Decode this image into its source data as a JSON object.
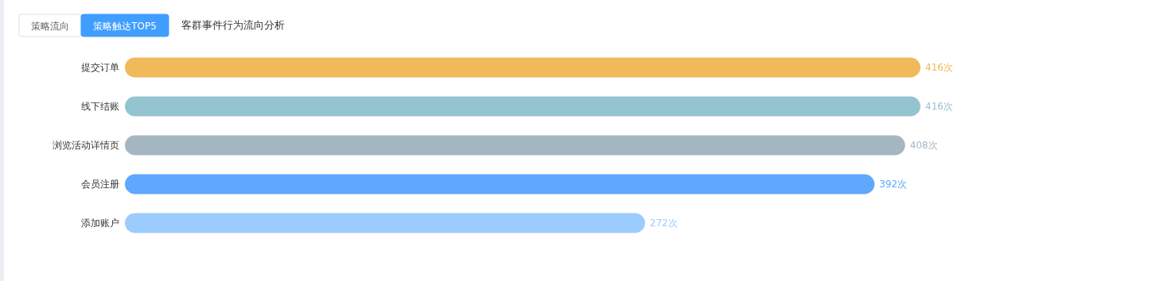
{
  "chart_data": {
    "type": "bar",
    "orientation": "horizontal",
    "title": "客群事件行为流向分析",
    "annotations": [
      "策略流向",
      "策略触达TOP5"
    ],
    "categories": [
      "提交订单",
      "线下结账",
      "浏览活动详情页",
      "会员注册",
      "添加账户"
    ],
    "values": [
      416,
      416,
      408,
      392,
      272
    ],
    "colors": [
      "#f0b95a",
      "#94c4cf",
      "#a5b6c3",
      "#5ea8fd",
      "#9ccbfd"
    ],
    "value_labels": [
      "416次",
      "416次",
      "408次",
      "392次",
      "272次"
    ],
    "grid": false
  }
}
